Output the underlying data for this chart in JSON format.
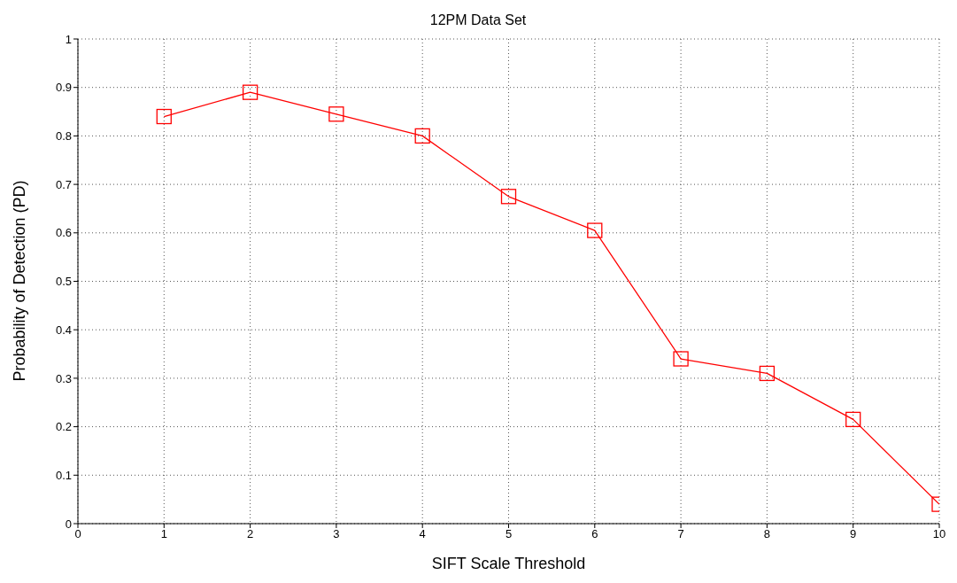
{
  "chart_data": {
    "type": "line",
    "title": "12PM Data Set",
    "xlabel": "SIFT Scale Threshold",
    "ylabel": "Probability of Detection (PD)",
    "x": [
      1,
      2,
      3,
      4,
      5,
      6,
      7,
      8,
      9,
      10
    ],
    "series": [
      {
        "color": "#ff0000",
        "values": [
          0.84,
          0.89,
          0.845,
          0.8,
          0.675,
          0.605,
          0.34,
          0.31,
          0.215,
          0.04
        ]
      }
    ],
    "xlim": [
      0,
      10
    ],
    "xticks": [
      0,
      1,
      2,
      3,
      4,
      5,
      6,
      7,
      8,
      9,
      10
    ],
    "ylim": [
      0,
      1
    ],
    "yticks": [
      0,
      0.1,
      0.2,
      0.3,
      0.4,
      0.5,
      0.6,
      0.7,
      0.8,
      0.9,
      1
    ],
    "grid": true,
    "marker": "square",
    "line_style": "solid"
  }
}
